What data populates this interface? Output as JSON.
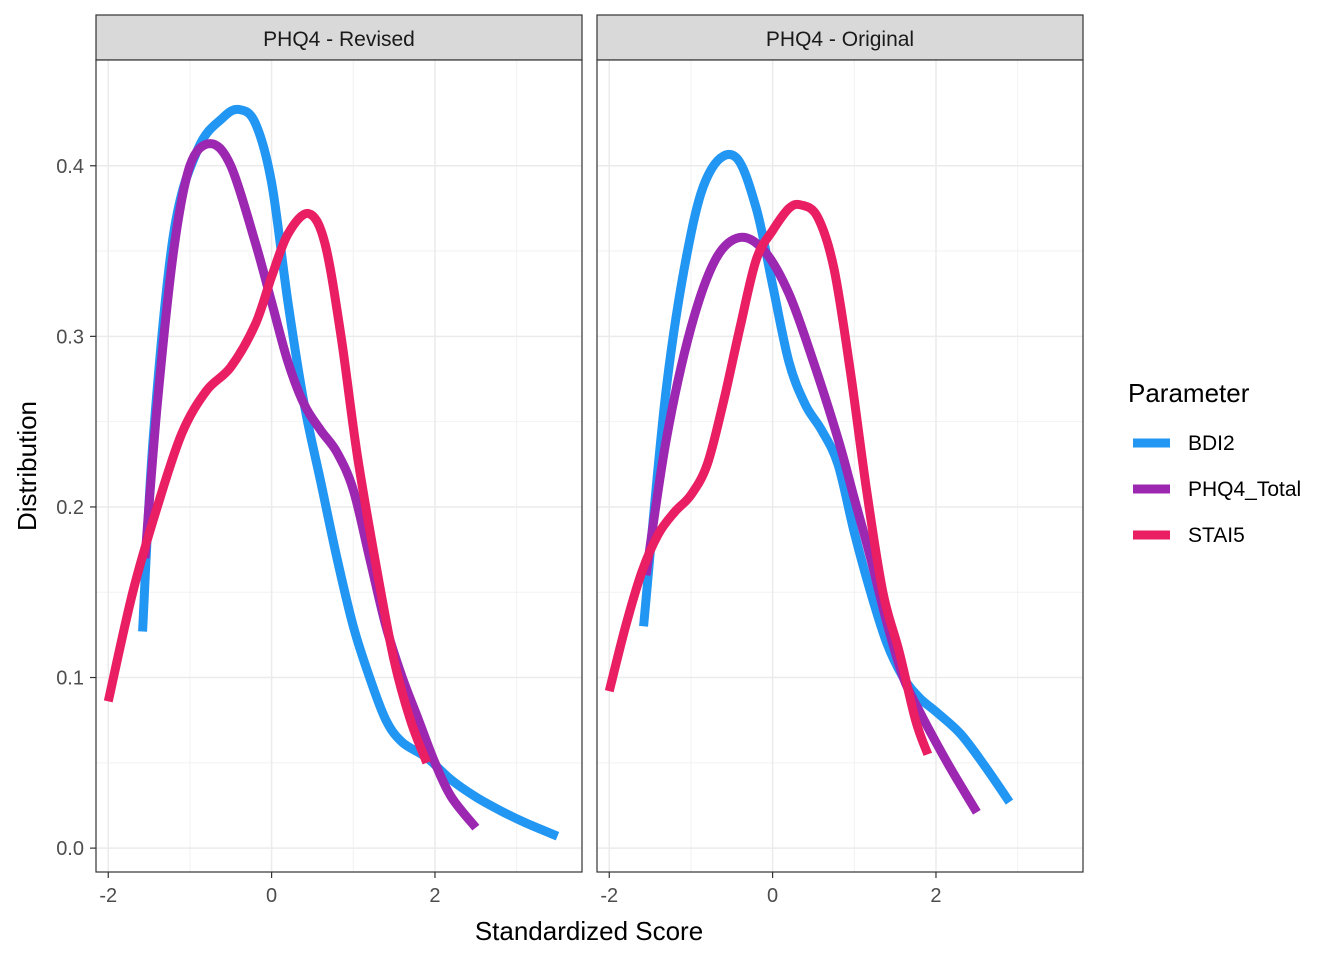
{
  "chart_data": {
    "type": "line",
    "xlabel": "Standardized Score",
    "ylabel": "Distribution",
    "xlim": [
      -2.15,
      3.8
    ],
    "ylim": [
      -0.014,
      0.462
    ],
    "x_ticks": [
      -2,
      0,
      2
    ],
    "x_tick_labels": [
      "-2",
      "0",
      "2"
    ],
    "y_ticks": [
      0.0,
      0.1,
      0.2,
      0.3,
      0.4
    ],
    "y_tick_labels": [
      "0.0",
      "0.1",
      "0.2",
      "0.3",
      "0.4"
    ],
    "grid": true,
    "legend": {
      "title": "Parameter",
      "position": "right",
      "entries": [
        {
          "name": "BDI2",
          "color": "#2196F3"
        },
        {
          "name": "PHQ4_Total",
          "color": "#9C27B0"
        },
        {
          "name": "STAI5",
          "color": "#E91E63"
        }
      ]
    },
    "panels": [
      {
        "title": "PHQ4 - Revised",
        "series": [
          {
            "name": "BDI2",
            "color": "#2196F3",
            "points": [
              [
                -1.58,
                0.127
              ],
              [
                -1.45,
                0.24
              ],
              [
                -1.2,
                0.36
              ],
              [
                -0.9,
                0.41
              ],
              [
                -0.6,
                0.428
              ],
              [
                -0.4,
                0.433
              ],
              [
                -0.2,
                0.425
              ],
              [
                0.0,
                0.39
              ],
              [
                0.2,
                0.32
              ],
              [
                0.4,
                0.26
              ],
              [
                0.6,
                0.215
              ],
              [
                0.8,
                0.17
              ],
              [
                1.0,
                0.13
              ],
              [
                1.2,
                0.1
              ],
              [
                1.4,
                0.075
              ],
              [
                1.6,
                0.062
              ],
              [
                1.9,
                0.053
              ],
              [
                2.2,
                0.04
              ],
              [
                2.5,
                0.03
              ],
              [
                2.8,
                0.022
              ],
              [
                3.1,
                0.015
              ],
              [
                3.5,
                0.007
              ]
            ]
          },
          {
            "name": "PHQ4_Total",
            "color": "#9C27B0",
            "points": [
              [
                -1.55,
                0.17
              ],
              [
                -1.4,
                0.26
              ],
              [
                -1.2,
                0.35
              ],
              [
                -1.0,
                0.4
              ],
              [
                -0.75,
                0.413
              ],
              [
                -0.5,
                0.4
              ],
              [
                -0.2,
                0.355
              ],
              [
                0.0,
                0.32
              ],
              [
                0.2,
                0.285
              ],
              [
                0.4,
                0.26
              ],
              [
                0.6,
                0.245
              ],
              [
                0.8,
                0.232
              ],
              [
                1.0,
                0.21
              ],
              [
                1.2,
                0.17
              ],
              [
                1.4,
                0.13
              ],
              [
                1.6,
                0.1
              ],
              [
                1.8,
                0.075
              ],
              [
                2.0,
                0.05
              ],
              [
                2.2,
                0.03
              ],
              [
                2.5,
                0.012
              ]
            ]
          },
          {
            "name": "STAI5",
            "color": "#E91E63",
            "points": [
              [
                -2.0,
                0.086
              ],
              [
                -1.7,
                0.15
              ],
              [
                -1.4,
                0.2
              ],
              [
                -1.1,
                0.243
              ],
              [
                -0.8,
                0.268
              ],
              [
                -0.5,
                0.282
              ],
              [
                -0.2,
                0.307
              ],
              [
                0.0,
                0.335
              ],
              [
                0.2,
                0.36
              ],
              [
                0.45,
                0.372
              ],
              [
                0.65,
                0.355
              ],
              [
                0.85,
                0.3
              ],
              [
                1.05,
                0.23
              ],
              [
                1.3,
                0.16
              ],
              [
                1.5,
                0.11
              ],
              [
                1.7,
                0.075
              ],
              [
                1.9,
                0.05
              ]
            ]
          }
        ]
      },
      {
        "title": "PHQ4 - Original",
        "series": [
          {
            "name": "BDI2",
            "color": "#2196F3",
            "points": [
              [
                -1.58,
                0.13
              ],
              [
                -1.3,
                0.27
              ],
              [
                -1.0,
                0.36
              ],
              [
                -0.75,
                0.398
              ],
              [
                -0.45,
                0.405
              ],
              [
                -0.2,
                0.375
              ],
              [
                0.0,
                0.33
              ],
              [
                0.2,
                0.285
              ],
              [
                0.4,
                0.26
              ],
              [
                0.6,
                0.245
              ],
              [
                0.8,
                0.225
              ],
              [
                1.0,
                0.185
              ],
              [
                1.2,
                0.15
              ],
              [
                1.4,
                0.12
              ],
              [
                1.6,
                0.1
              ],
              [
                1.8,
                0.088
              ],
              [
                2.0,
                0.08
              ],
              [
                2.3,
                0.067
              ],
              [
                2.6,
                0.048
              ],
              [
                2.9,
                0.027
              ]
            ]
          },
          {
            "name": "PHQ4_Total",
            "color": "#9C27B0",
            "points": [
              [
                -1.55,
                0.16
              ],
              [
                -1.3,
                0.24
              ],
              [
                -1.0,
                0.305
              ],
              [
                -0.7,
                0.345
              ],
              [
                -0.4,
                0.358
              ],
              [
                -0.1,
                0.35
              ],
              [
                0.2,
                0.325
              ],
              [
                0.5,
                0.285
              ],
              [
                0.8,
                0.24
              ],
              [
                1.0,
                0.205
              ],
              [
                1.2,
                0.17
              ],
              [
                1.4,
                0.132
              ],
              [
                1.6,
                0.1
              ],
              [
                1.8,
                0.08
              ],
              [
                2.0,
                0.062
              ],
              [
                2.2,
                0.045
              ],
              [
                2.5,
                0.021
              ]
            ]
          },
          {
            "name": "STAI5",
            "color": "#E91E63",
            "points": [
              [
                -2.0,
                0.092
              ],
              [
                -1.8,
                0.13
              ],
              [
                -1.6,
                0.162
              ],
              [
                -1.4,
                0.184
              ],
              [
                -1.2,
                0.197
              ],
              [
                -1.0,
                0.207
              ],
              [
                -0.8,
                0.225
              ],
              [
                -0.6,
                0.262
              ],
              [
                -0.4,
                0.305
              ],
              [
                -0.2,
                0.345
              ],
              [
                0.0,
                0.362
              ],
              [
                0.2,
                0.375
              ],
              [
                0.35,
                0.377
              ],
              [
                0.55,
                0.37
              ],
              [
                0.75,
                0.34
              ],
              [
                0.95,
                0.28
              ],
              [
                1.15,
                0.21
              ],
              [
                1.35,
                0.15
              ],
              [
                1.55,
                0.115
              ],
              [
                1.75,
                0.075
              ],
              [
                1.9,
                0.055
              ]
            ]
          }
        ]
      }
    ]
  }
}
